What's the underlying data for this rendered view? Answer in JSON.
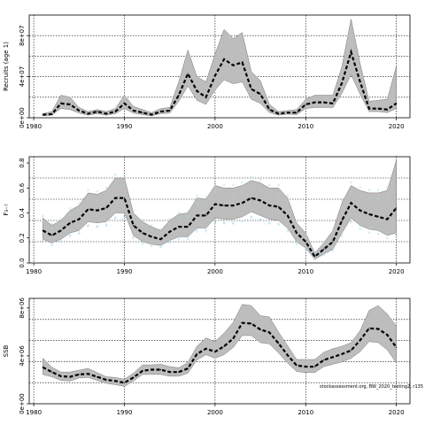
{
  "chart_data": [
    {
      "type": "line",
      "ylabel": "Recruits (age 1)",
      "ylim": [
        0,
        100000000
      ],
      "yticks": [
        0,
        40000000,
        80000000
      ],
      "ytick_labels": [
        "0e+00",
        "4e+07",
        "8e+07"
      ],
      "grid": true,
      "x": [
        1981,
        1982,
        1983,
        1984,
        1985,
        1986,
        1987,
        1988,
        1989,
        1990,
        1991,
        1992,
        1993,
        1994,
        1995,
        1996,
        1997,
        1998,
        1999,
        2000,
        2001,
        2002,
        2003,
        2004,
        2005,
        2006,
        2007,
        2008,
        2009,
        2010,
        2011,
        2012,
        2013,
        2014,
        2015,
        2016,
        2017,
        2018,
        2019,
        2020
      ],
      "series": [
        {
          "values": [
            3000000,
            3500000,
            14000000,
            13000000,
            7000000,
            4000000,
            6000000,
            4000000,
            6000000,
            14000000,
            7000000,
            5000000,
            3000000,
            6000000,
            7000000,
            22000000,
            43000000,
            26000000,
            20000000,
            41000000,
            57000000,
            51000000,
            54000000,
            28000000,
            23000000,
            8000000,
            4000000,
            5000000,
            5000000,
            13000000,
            15000000,
            15000000,
            14000000,
            34000000,
            64000000,
            35000000,
            9000000,
            9000000,
            8000000,
            14000000
          ]
        },
        {
          "role": "ci_upper",
          "values": [
            4000000,
            6000000,
            22000000,
            20000000,
            10000000,
            6000000,
            8000000,
            6000000,
            9000000,
            22000000,
            11000000,
            8000000,
            5000000,
            9000000,
            10000000,
            35000000,
            66000000,
            40000000,
            35000000,
            62000000,
            86000000,
            77000000,
            83000000,
            45000000,
            36000000,
            13000000,
            6000000,
            7000000,
            8000000,
            18000000,
            22000000,
            22000000,
            22000000,
            50000000,
            96000000,
            53000000,
            16000000,
            17000000,
            18000000,
            50000000
          ]
        },
        {
          "role": "ci_lower",
          "values": [
            2000000,
            2500000,
            9000000,
            8000000,
            4500000,
            2500000,
            4000000,
            2500000,
            4000000,
            9000000,
            4500000,
            3000000,
            2000000,
            4000000,
            4500000,
            16000000,
            31000000,
            17000000,
            13000000,
            27000000,
            37000000,
            33000000,
            35000000,
            18000000,
            14000000,
            5000000,
            2500000,
            3500000,
            3000000,
            9000000,
            10000000,
            10000000,
            10000000,
            24000000,
            42000000,
            23000000,
            6000000,
            6000000,
            5000000,
            9000000
          ]
        }
      ]
    },
    {
      "type": "line",
      "ylabel": "F₃₋₇",
      "ylim": [
        0,
        0.85
      ],
      "yticks": [
        0,
        0.2,
        0.4,
        0.6,
        0.8
      ],
      "ytick_labels": [
        "0.0",
        "0.2",
        "0.4",
        "0.6",
        "0.8"
      ],
      "grid": true,
      "x": [
        1981,
        1982,
        1983,
        1984,
        1985,
        1986,
        1987,
        1988,
        1989,
        1990,
        1991,
        1992,
        1993,
        1994,
        1995,
        1996,
        1997,
        1998,
        1999,
        2000,
        2001,
        2002,
        2003,
        2004,
        2005,
        2006,
        2007,
        2008,
        2009,
        2010,
        2011,
        2012,
        2013,
        2014,
        2015,
        2016,
        2017,
        2018,
        2019,
        2020
      ],
      "series": [
        {
          "values": [
            0.26,
            0.22,
            0.26,
            0.32,
            0.35,
            0.43,
            0.42,
            0.44,
            0.52,
            0.52,
            0.3,
            0.24,
            0.21,
            0.19,
            0.25,
            0.29,
            0.29,
            0.38,
            0.38,
            0.47,
            0.46,
            0.46,
            0.48,
            0.52,
            0.5,
            0.46,
            0.45,
            0.38,
            0.24,
            0.17,
            0.05,
            0.11,
            0.17,
            0.34,
            0.48,
            0.42,
            0.39,
            0.37,
            0.35,
            0.44
          ]
        },
        {
          "role": "ci_upper",
          "values": [
            0.36,
            0.3,
            0.34,
            0.42,
            0.46,
            0.56,
            0.55,
            0.58,
            0.68,
            0.68,
            0.4,
            0.33,
            0.29,
            0.26,
            0.34,
            0.39,
            0.4,
            0.52,
            0.51,
            0.62,
            0.6,
            0.6,
            0.62,
            0.66,
            0.64,
            0.6,
            0.6,
            0.52,
            0.32,
            0.24,
            0.08,
            0.16,
            0.26,
            0.48,
            0.62,
            0.58,
            0.56,
            0.56,
            0.58,
            0.82
          ]
        },
        {
          "role": "ci_lower",
          "values": [
            0.19,
            0.16,
            0.19,
            0.24,
            0.26,
            0.33,
            0.32,
            0.33,
            0.4,
            0.4,
            0.22,
            0.17,
            0.15,
            0.14,
            0.18,
            0.21,
            0.21,
            0.28,
            0.28,
            0.36,
            0.35,
            0.35,
            0.37,
            0.41,
            0.38,
            0.35,
            0.34,
            0.28,
            0.17,
            0.12,
            0.03,
            0.07,
            0.11,
            0.24,
            0.36,
            0.3,
            0.27,
            0.26,
            0.22,
            0.24
          ]
        }
      ]
    },
    {
      "type": "line",
      "ylabel": "SSB",
      "ylim": [
        0,
        8800000
      ],
      "yticks": [
        0,
        4000000,
        8000000
      ],
      "ytick_labels": [
        "0e+00",
        "4e+06",
        "8e+06"
      ],
      "grid": true,
      "x": [
        1981,
        1982,
        1983,
        1984,
        1985,
        1986,
        1987,
        1988,
        1989,
        1990,
        1991,
        1992,
        1993,
        1994,
        1995,
        1996,
        1997,
        1998,
        1999,
        2000,
        2001,
        2002,
        2003,
        2004,
        2005,
        2006,
        2007,
        2008,
        2009,
        2010,
        2011,
        2012,
        2013,
        2014,
        2015,
        2016,
        2017,
        2018,
        2019,
        2020
      ],
      "series": [
        {
          "values": [
            3050000,
            2650000,
            2300000,
            2250000,
            2450000,
            2500000,
            2250000,
            2000000,
            1900000,
            1750000,
            2200000,
            2750000,
            2850000,
            2850000,
            2650000,
            2650000,
            2950000,
            4150000,
            4600000,
            4350000,
            4800000,
            5450000,
            6750000,
            6700000,
            6200000,
            5950000,
            5050000,
            4050000,
            3200000,
            3100000,
            3100000,
            3650000,
            3900000,
            4150000,
            4450000,
            5300000,
            6300000,
            6250000,
            5750000,
            4700000
          ]
        },
        {
          "role": "ci_upper",
          "values": [
            3800000,
            3050000,
            2650000,
            2650000,
            2800000,
            2950000,
            2600000,
            2250000,
            2200000,
            2050000,
            2550000,
            3250000,
            3250000,
            3300000,
            3100000,
            3000000,
            3450000,
            4800000,
            5500000,
            5200000,
            5900000,
            6800000,
            8300000,
            8200000,
            7350000,
            7250000,
            6000000,
            4850000,
            3700000,
            3700000,
            3700000,
            4300000,
            4600000,
            4800000,
            5100000,
            6100000,
            7800000,
            8200000,
            7500000,
            6500000
          ]
        },
        {
          "role": "ci_lower",
          "values": [
            2450000,
            2250000,
            1950000,
            1900000,
            2150000,
            2200000,
            1950000,
            1700000,
            1600000,
            1450000,
            1900000,
            2450000,
            2450000,
            2450000,
            2300000,
            2300000,
            2550000,
            3650000,
            4100000,
            3800000,
            4100000,
            4700000,
            5700000,
            5700000,
            5100000,
            5000000,
            4250000,
            3400000,
            2700000,
            2600000,
            2600000,
            3100000,
            3300000,
            3500000,
            3800000,
            4350000,
            5200000,
            5100000,
            4500000,
            3400000
          ]
        }
      ]
    }
  ],
  "x_ticks": [
    "1980",
    "1990",
    "2000",
    "2010",
    "2020"
  ],
  "annotation": "stockassessment.org, BW_2020_testing2, r135"
}
